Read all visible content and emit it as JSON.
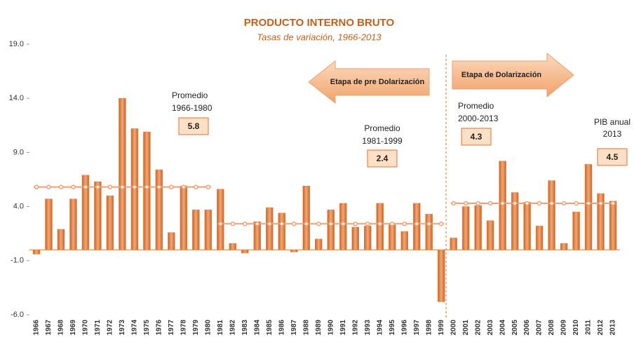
{
  "chart_data": {
    "type": "bar",
    "title": "PRODUCTO INTERNO BRUTO",
    "subtitle": "Tasas de variación, 1966-2013",
    "categories": [
      "1966",
      "1967",
      "1968",
      "1969",
      "1970",
      "1971",
      "1972",
      "1973",
      "1974",
      "1975",
      "1976",
      "1977",
      "1978",
      "1979",
      "1980",
      "1981",
      "1982",
      "1983",
      "1984",
      "1985",
      "1986",
      "1987",
      "1988",
      "1989",
      "1990",
      "1991",
      "1992",
      "1993",
      "1994",
      "1995",
      "1996",
      "1997",
      "1998",
      "1999",
      "2000",
      "2001",
      "2002",
      "2003",
      "2004",
      "2005",
      "2006",
      "2007",
      "2008",
      "2009",
      "2010",
      "2011",
      "2012",
      "2013"
    ],
    "values": [
      -0.4,
      4.7,
      1.9,
      4.7,
      6.9,
      6.3,
      5.0,
      14.0,
      11.2,
      10.9,
      7.4,
      1.6,
      5.9,
      3.7,
      3.7,
      5.6,
      0.6,
      -0.3,
      2.6,
      3.9,
      3.4,
      -0.2,
      5.9,
      1.0,
      3.7,
      4.3,
      2.1,
      2.2,
      4.3,
      2.3,
      1.7,
      4.3,
      3.3,
      -4.8,
      1.1,
      4.0,
      4.1,
      2.7,
      8.2,
      5.3,
      4.4,
      2.2,
      6.4,
      0.6,
      3.5,
      7.9,
      5.2,
      4.5
    ],
    "color": "#e8894a",
    "ylim": [
      -6,
      19
    ],
    "yticks": [
      {
        "value": -6,
        "label": "-6.0"
      },
      {
        "value": -1,
        "label": "-1.0"
      },
      {
        "value": 4,
        "label": "4.0"
      },
      {
        "value": 9,
        "label": "9.0"
      },
      {
        "value": 14,
        "label": "14.0"
      },
      {
        "value": 19,
        "label": "19.0"
      }
    ],
    "averages": [
      {
        "label": "Promedio",
        "period": "1966-1980",
        "value": 5.8
      },
      {
        "label": "Promedio",
        "period": "1981-1999",
        "value": 2.4
      },
      {
        "label": "Promedio",
        "period": "2000-2013",
        "value": 4.3
      }
    ],
    "average_color": "#f0a070",
    "last_value_label": [
      "PIB anual",
      "2013"
    ],
    "stages": [
      "Etapa de pre Dolarización",
      "Etapa de  Dolarización"
    ]
  }
}
